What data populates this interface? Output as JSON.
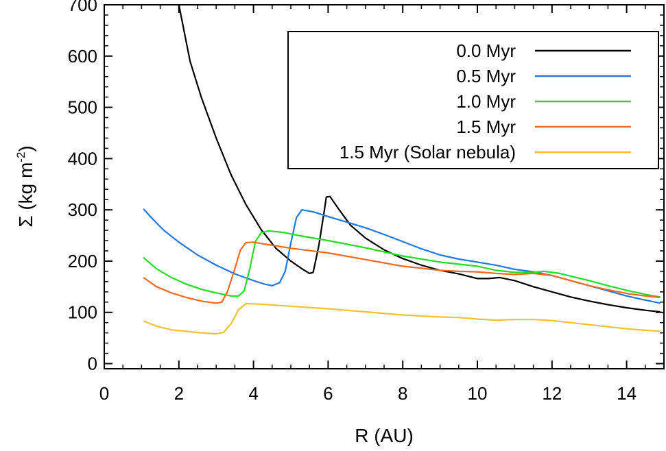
{
  "chart_data": {
    "type": "line",
    "xlabel": "R (AU)",
    "ylabel_main": "Σ (kg m",
    "ylabel_sup": "-2",
    "ylabel_close": ")",
    "xlim": [
      0,
      15
    ],
    "ylim": [
      -10,
      700
    ],
    "x_ticks": [
      0,
      2,
      4,
      6,
      8,
      10,
      12,
      14
    ],
    "x_tick_labels": [
      "0",
      "2",
      "4",
      "6",
      "8",
      "10",
      "12",
      "14"
    ],
    "y_ticks": [
      0,
      100,
      200,
      300,
      400,
      500,
      600,
      700
    ],
    "y_tick_labels": [
      "0",
      "100",
      "200",
      "300",
      "400",
      "500",
      "600",
      "700"
    ],
    "grid": false,
    "legend_position": "top-right",
    "series": [
      {
        "name": "0.0 Myr",
        "color": "#000000",
        "points": [
          [
            1.9,
            760
          ],
          [
            2.0,
            700
          ],
          [
            2.3,
            590
          ],
          [
            2.6,
            520
          ],
          [
            3.0,
            440
          ],
          [
            3.4,
            368
          ],
          [
            3.8,
            310
          ],
          [
            4.2,
            262
          ],
          [
            4.6,
            225
          ],
          [
            5.0,
            200
          ],
          [
            5.3,
            185
          ],
          [
            5.5,
            176
          ],
          [
            5.6,
            178
          ],
          [
            5.75,
            230
          ],
          [
            5.9,
            300
          ],
          [
            5.95,
            325
          ],
          [
            6.05,
            326
          ],
          [
            6.3,
            300
          ],
          [
            6.6,
            270
          ],
          [
            7.0,
            245
          ],
          [
            7.5,
            222
          ],
          [
            8.0,
            205
          ],
          [
            8.5,
            192
          ],
          [
            9.0,
            182
          ],
          [
            9.5,
            175
          ],
          [
            10.0,
            166
          ],
          [
            10.3,
            166
          ],
          [
            10.6,
            168
          ],
          [
            11.0,
            162
          ],
          [
            11.5,
            150
          ],
          [
            12.0,
            140
          ],
          [
            12.5,
            130
          ],
          [
            13.0,
            122
          ],
          [
            13.5,
            115
          ],
          [
            14.0,
            109
          ],
          [
            14.5,
            104
          ],
          [
            14.9,
            101
          ]
        ]
      },
      {
        "name": "0.5 Myr",
        "color": "#1f78e0",
        "points": [
          [
            1.05,
            302
          ],
          [
            1.3,
            282
          ],
          [
            1.6,
            260
          ],
          [
            2.0,
            237
          ],
          [
            2.5,
            212
          ],
          [
            3.0,
            192
          ],
          [
            3.5,
            175
          ],
          [
            4.0,
            162
          ],
          [
            4.3,
            155
          ],
          [
            4.5,
            152
          ],
          [
            4.7,
            158
          ],
          [
            4.85,
            180
          ],
          [
            5.0,
            235
          ],
          [
            5.15,
            285
          ],
          [
            5.3,
            300
          ],
          [
            5.6,
            296
          ],
          [
            6.0,
            287
          ],
          [
            6.5,
            276
          ],
          [
            7.0,
            265
          ],
          [
            7.5,
            252
          ],
          [
            8.0,
            238
          ],
          [
            8.5,
            224
          ],
          [
            9.0,
            212
          ],
          [
            9.5,
            204
          ],
          [
            10.0,
            198
          ],
          [
            10.5,
            192
          ],
          [
            11.0,
            184
          ],
          [
            11.5,
            179
          ],
          [
            12.0,
            172
          ],
          [
            12.5,
            162
          ],
          [
            13.0,
            152
          ],
          [
            13.5,
            142
          ],
          [
            14.0,
            132
          ],
          [
            14.5,
            124
          ],
          [
            14.9,
            118
          ]
        ]
      },
      {
        "name": "1.0 Myr",
        "color": "#22dd22",
        "points": [
          [
            1.05,
            207
          ],
          [
            1.4,
            185
          ],
          [
            1.8,
            168
          ],
          [
            2.2,
            155
          ],
          [
            2.6,
            145
          ],
          [
            3.0,
            138
          ],
          [
            3.4,
            132
          ],
          [
            3.6,
            132
          ],
          [
            3.75,
            142
          ],
          [
            3.9,
            185
          ],
          [
            4.05,
            238
          ],
          [
            4.2,
            255
          ],
          [
            4.4,
            259
          ],
          [
            4.8,
            256
          ],
          [
            5.2,
            250
          ],
          [
            6.0,
            240
          ],
          [
            7.0,
            226
          ],
          [
            8.0,
            210
          ],
          [
            9.0,
            198
          ],
          [
            10.0,
            190
          ],
          [
            10.5,
            182
          ],
          [
            11.0,
            178
          ],
          [
            11.5,
            178
          ],
          [
            11.8,
            180
          ],
          [
            12.2,
            176
          ],
          [
            13.0,
            162
          ],
          [
            13.5,
            152
          ],
          [
            14.0,
            143
          ],
          [
            14.5,
            135
          ],
          [
            14.9,
            130
          ]
        ]
      },
      {
        "name": "1.5 Myr",
        "color": "#f26a22",
        "points": [
          [
            1.05,
            168
          ],
          [
            1.4,
            150
          ],
          [
            1.8,
            138
          ],
          [
            2.2,
            129
          ],
          [
            2.6,
            122
          ],
          [
            3.0,
            118
          ],
          [
            3.15,
            120
          ],
          [
            3.3,
            140
          ],
          [
            3.5,
            185
          ],
          [
            3.65,
            222
          ],
          [
            3.8,
            236
          ],
          [
            4.0,
            237
          ],
          [
            4.4,
            232
          ],
          [
            5.0,
            225
          ],
          [
            6.0,
            216
          ],
          [
            7.0,
            203
          ],
          [
            8.0,
            190
          ],
          [
            9.0,
            182
          ],
          [
            9.5,
            180
          ],
          [
            10.0,
            179
          ],
          [
            10.5,
            176
          ],
          [
            11.0,
            174
          ],
          [
            11.5,
            176
          ],
          [
            12.0,
            172
          ],
          [
            12.5,
            162
          ],
          [
            13.0,
            152
          ],
          [
            13.5,
            144
          ],
          [
            14.0,
            137
          ],
          [
            14.5,
            132
          ],
          [
            14.9,
            129
          ]
        ]
      },
      {
        "name": "1.5 Myr (Solar nebula)",
        "color": "#f2c12e",
        "points": [
          [
            1.05,
            83
          ],
          [
            1.4,
            73
          ],
          [
            1.8,
            66
          ],
          [
            2.2,
            63
          ],
          [
            2.6,
            60
          ],
          [
            3.0,
            58
          ],
          [
            3.2,
            61
          ],
          [
            3.4,
            78
          ],
          [
            3.6,
            105
          ],
          [
            3.8,
            117
          ],
          [
            4.2,
            116
          ],
          [
            5.0,
            112
          ],
          [
            6.0,
            107
          ],
          [
            7.0,
            101
          ],
          [
            8.0,
            95
          ],
          [
            9.0,
            91
          ],
          [
            9.5,
            90
          ],
          [
            10.0,
            87
          ],
          [
            10.5,
            85
          ],
          [
            11.0,
            86
          ],
          [
            11.5,
            86
          ],
          [
            12.0,
            84
          ],
          [
            12.5,
            80
          ],
          [
            13.0,
            76
          ],
          [
            13.5,
            72
          ],
          [
            14.0,
            68
          ],
          [
            14.5,
            65
          ],
          [
            14.9,
            63
          ]
        ]
      }
    ]
  }
}
